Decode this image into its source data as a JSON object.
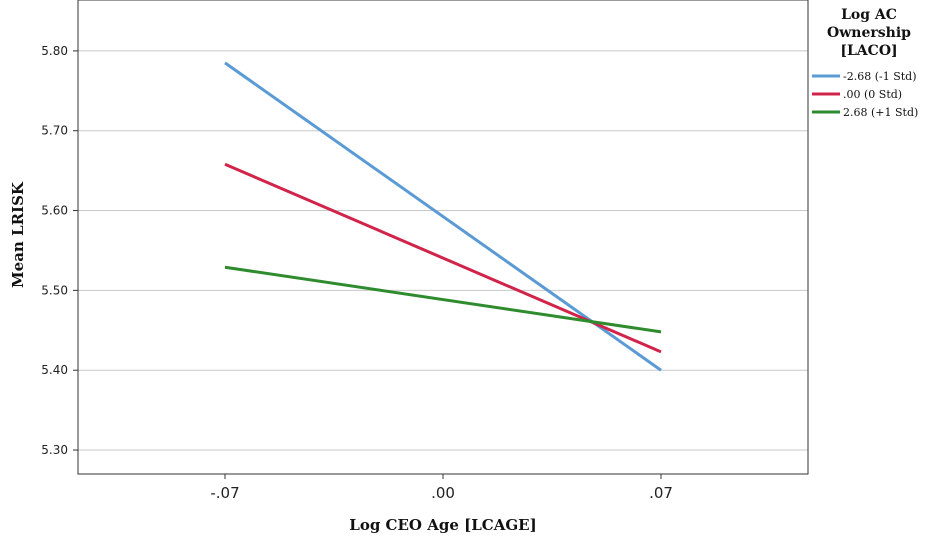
{
  "chart_data": {
    "type": "line",
    "xlabel": "Log CEO Age [LCAGE]",
    "ylabel": "Mean LRISK",
    "x": [
      "-.07",
      ".00",
      ".07"
    ],
    "y_ticks": [
      "5.30",
      "5.40",
      "5.50",
      "5.60",
      "5.70",
      "5.80"
    ],
    "ylim": [
      5.27,
      5.87
    ],
    "grid": true,
    "legend": {
      "title_lines": [
        "Log AC",
        "Ownership",
        "[LACO]"
      ],
      "placement": "right"
    },
    "series": [
      {
        "name": "-2.68 (-1 Std)",
        "color": "#5b9bd5",
        "x": [
          -0.07,
          0.07
        ],
        "values": [
          5.785,
          5.4
        ]
      },
      {
        "name": ".00 (0 Std)",
        "color": "#d1244a",
        "x": [
          -0.07,
          0.07
        ],
        "values": [
          5.658,
          5.423
        ]
      },
      {
        "name": "2.68 (+1 Std)",
        "color": "#2e8b2e",
        "x": [
          -0.07,
          0.07
        ],
        "values": [
          5.529,
          5.448
        ]
      }
    ]
  }
}
